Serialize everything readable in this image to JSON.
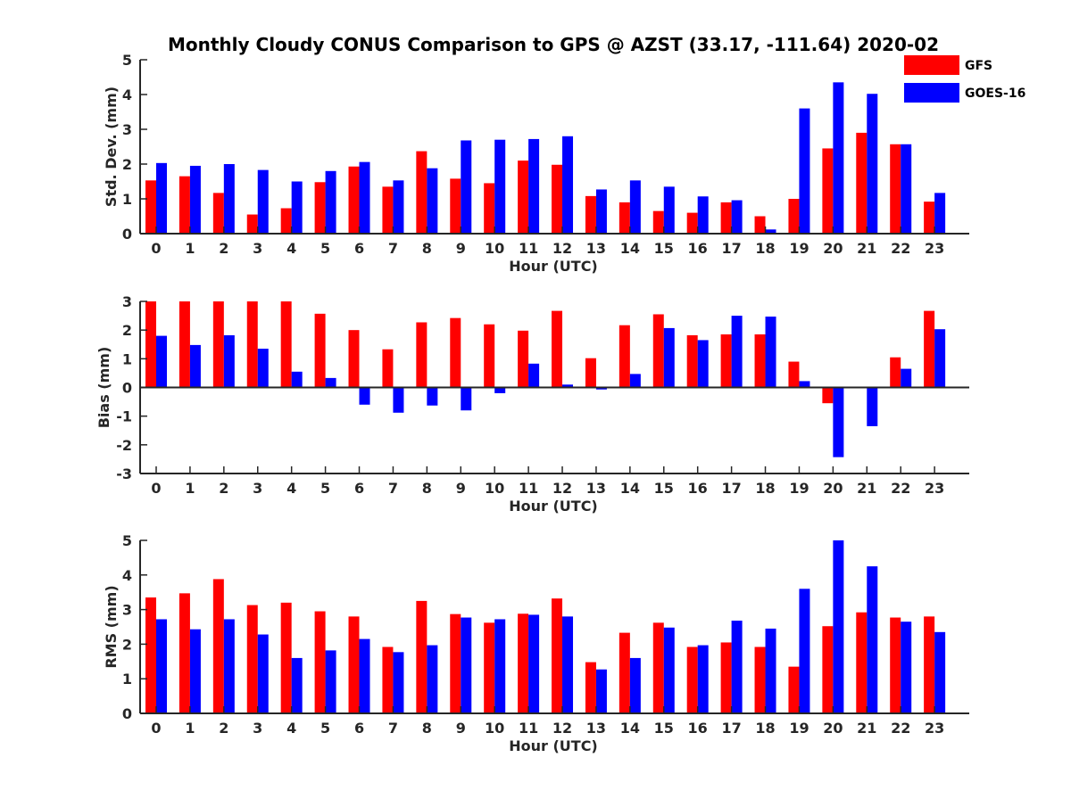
{
  "chart_data": {
    "title": "Monthly Cloudy CONUS Comparison to GPS @ AZST (33.17, -111.64) 2020-02",
    "legend": {
      "position": "top-right",
      "entries": [
        {
          "label": "GFS",
          "color": "#ff0000"
        },
        {
          "label": "GOES-16",
          "color": "#0000ff"
        }
      ]
    },
    "charts": [
      {
        "type": "bar",
        "xlabel": "Hour (UTC)",
        "ylabel": "Std. Dev. (mm)",
        "ylim": [
          0,
          5
        ],
        "yticks": [
          0,
          1,
          2,
          3,
          4,
          5
        ],
        "categories": [
          "0",
          "1",
          "2",
          "3",
          "4",
          "5",
          "6",
          "7",
          "8",
          "9",
          "10",
          "11",
          "12",
          "13",
          "14",
          "15",
          "16",
          "17",
          "18",
          "19",
          "20",
          "21",
          "22",
          "23"
        ],
        "series": [
          {
            "name": "GFS",
            "values": [
              1.53,
              1.65,
              1.17,
              0.55,
              0.73,
              1.48,
              1.93,
              1.35,
              2.37,
              1.58,
              1.45,
              2.1,
              1.98,
              1.08,
              0.9,
              0.65,
              0.6,
              0.9,
              0.5,
              1.0,
              2.45,
              2.9,
              2.57,
              0.92
            ]
          },
          {
            "name": "GOES-16",
            "values": [
              2.03,
              1.95,
              2.0,
              1.83,
              1.5,
              1.8,
              2.06,
              1.53,
              1.88,
              2.68,
              2.7,
              2.72,
              2.8,
              1.27,
              1.53,
              1.35,
              1.07,
              0.96,
              0.12,
              3.6,
              4.35,
              4.02,
              2.57,
              1.17
            ]
          }
        ]
      },
      {
        "type": "bar",
        "xlabel": "Hour (UTC)",
        "ylabel": "Bias (mm)",
        "ylim": [
          -3,
          3
        ],
        "yticks": [
          -3,
          -2,
          -1,
          0,
          1,
          2,
          3
        ],
        "categories": [
          "0",
          "1",
          "2",
          "3",
          "4",
          "5",
          "6",
          "7",
          "8",
          "9",
          "10",
          "11",
          "12",
          "13",
          "14",
          "15",
          "16",
          "17",
          "18",
          "19",
          "20",
          "21",
          "22",
          "23"
        ],
        "series": [
          {
            "name": "GFS",
            "values": [
              3.0,
              3.0,
              3.0,
              3.0,
              3.0,
              2.57,
              2.0,
              1.33,
              2.27,
              2.42,
              2.2,
              1.98,
              2.67,
              1.02,
              2.17,
              2.55,
              1.82,
              1.85,
              1.85,
              0.9,
              -0.55,
              0.03,
              1.05,
              2.67
            ]
          },
          {
            "name": "GOES-16",
            "values": [
              1.8,
              1.48,
              1.82,
              1.35,
              0.55,
              0.33,
              -0.6,
              -0.88,
              -0.63,
              -0.8,
              -0.2,
              0.83,
              0.1,
              -0.07,
              0.47,
              2.07,
              1.65,
              2.5,
              2.47,
              0.22,
              -2.43,
              -1.35,
              0.65,
              2.03
            ]
          }
        ]
      },
      {
        "type": "bar",
        "xlabel": "Hour (UTC)",
        "ylabel": "RMS (mm)",
        "ylim": [
          0,
          5
        ],
        "yticks": [
          0,
          1,
          2,
          3,
          4,
          5
        ],
        "categories": [
          "0",
          "1",
          "2",
          "3",
          "4",
          "5",
          "6",
          "7",
          "8",
          "9",
          "10",
          "11",
          "12",
          "13",
          "14",
          "15",
          "16",
          "17",
          "18",
          "19",
          "20",
          "21",
          "22",
          "23"
        ],
        "series": [
          {
            "name": "GFS",
            "values": [
              3.35,
              3.47,
              3.88,
              3.13,
              3.2,
              2.95,
              2.8,
              1.92,
              3.25,
              2.87,
              2.62,
              2.88,
              3.32,
              1.48,
              2.33,
              2.62,
              1.92,
              2.05,
              1.92,
              1.35,
              2.52,
              2.92,
              2.77,
              2.8
            ]
          },
          {
            "name": "GOES-16",
            "values": [
              2.72,
              2.43,
              2.72,
              2.28,
              1.6,
              1.82,
              2.15,
              1.77,
              1.97,
              2.77,
              2.72,
              2.85,
              2.8,
              1.27,
              1.6,
              2.48,
              1.97,
              2.68,
              2.45,
              3.6,
              5.0,
              4.25,
              2.65,
              2.35
            ]
          }
        ]
      }
    ]
  }
}
